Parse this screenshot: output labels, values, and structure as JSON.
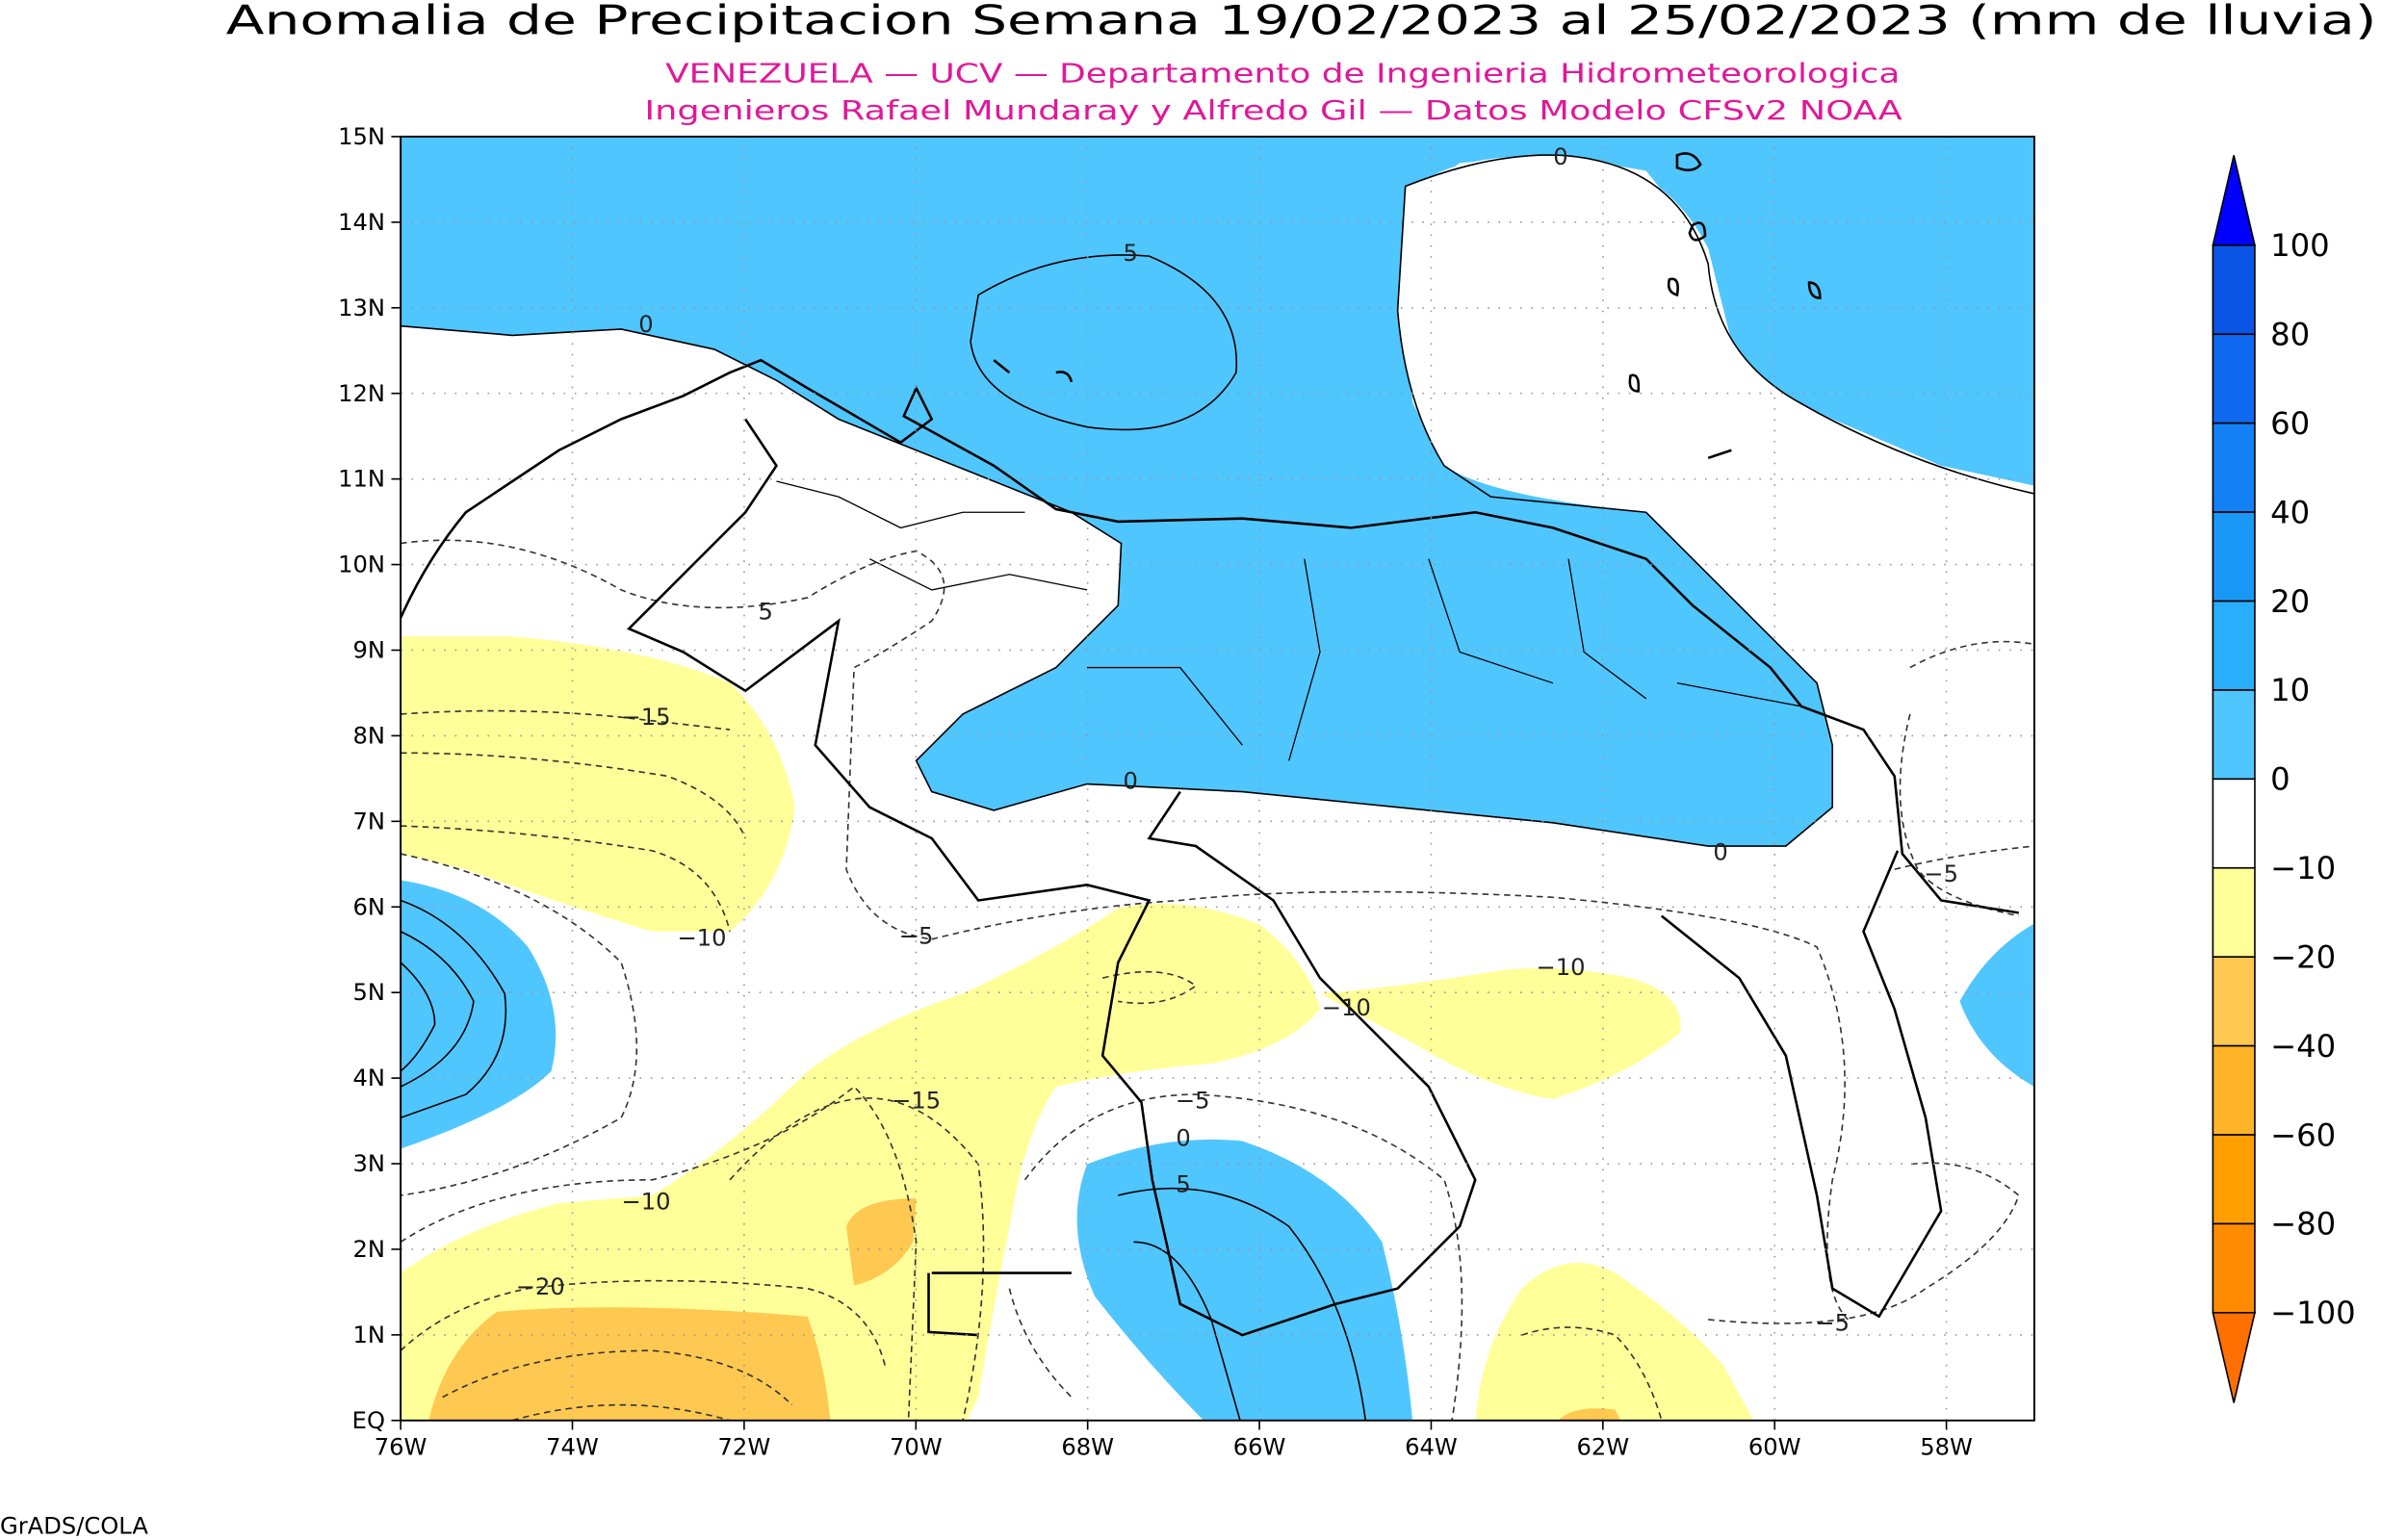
{
  "map": {
    "title": "Anomalia de Precipitacion Semana 19/02/2023 al 25/02/2023 (mm de lluvia)",
    "subtitle": [
      "VENEZUELA — UCV — Departamento de Ingenieria Hidrometeorologica",
      "Ingenieros Rafael Mundaray y Alfredo Gil — Datos Modelo CFSv2 NOAA"
    ],
    "lat_labels": [
      "EQ",
      "1N",
      "2N",
      "3N",
      "4N",
      "5N",
      "6N",
      "7N",
      "8N",
      "9N",
      "10N",
      "11N",
      "12N",
      "13N",
      "14N",
      "15N"
    ],
    "lon_labels": [
      "76W",
      "74W",
      "72W",
      "70W",
      "68W",
      "66W",
      "64W",
      "62W",
      "60W",
      "58W"
    ],
    "contour_labels": [
      "0",
      "5",
      "0",
      "−15",
      "5",
      "0",
      "0",
      "−5",
      "−10",
      "−5",
      "−10",
      "−10",
      "−15",
      "−5",
      "0",
      "5",
      "−10",
      "−20",
      "−5"
    ],
    "colorbar": {
      "labels": [
        "100",
        "80",
        "60",
        "40",
        "20",
        "10",
        "0",
        "−10",
        "−20",
        "−40",
        "−60",
        "−80",
        "−100"
      ],
      "colors": [
        "#0000ff",
        "#0a55e6",
        "#0f69f0",
        "#1480f5",
        "#1a98f7",
        "#28aefb",
        "#50c6ff",
        "#ffffff",
        "#ffff99",
        "#ffc850",
        "#ffb428",
        "#ffa000",
        "#ff8c00",
        "#ff7000"
      ]
    },
    "footer": "GrADS/COLA"
  }
}
